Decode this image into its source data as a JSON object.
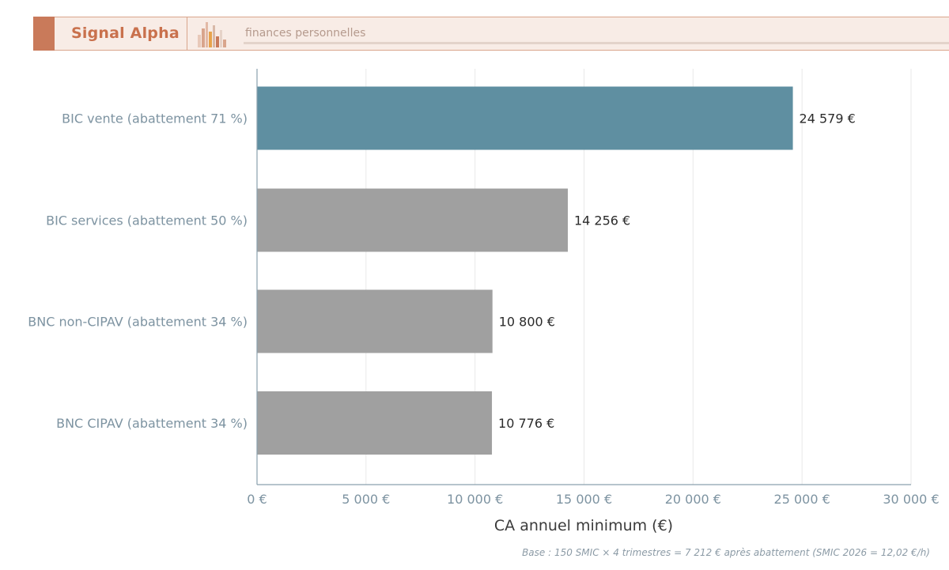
{
  "header": {
    "brand": "Signal Alpha",
    "tagline": "finances personnelles"
  },
  "colors": {
    "brand": "#c9714d",
    "highlight_bar": "#5f8fa1",
    "default_bar": "#a0a0a0",
    "axis_text": "#7d93a1"
  },
  "chart_data": {
    "type": "bar",
    "orientation": "horizontal",
    "categories": [
      "BIC vente (abattement 71 %)",
      "BIC services (abattement 50 %)",
      "BNC non-CIPAV (abattement 34 %)",
      "BNC CIPAV (abattement 34 %)"
    ],
    "values": [
      24579,
      14256,
      10800,
      10776
    ],
    "value_labels": [
      "24 579 €",
      "14 256 €",
      "10 800 €",
      "10 776 €"
    ],
    "highlight_index": 0,
    "xlabel": "CA annuel minimum (€)",
    "ylabel": "",
    "xlim": [
      0,
      30000
    ],
    "xticks": [
      0,
      5000,
      10000,
      15000,
      20000,
      25000,
      30000
    ],
    "xtick_labels": [
      "0 €",
      "5 000 €",
      "10 000 €",
      "15 000 €",
      "20 000 €",
      "25 000 €",
      "30 000 €"
    ],
    "grid": "vertical"
  },
  "footnote": "Base : 150 SMIC × 4 trimestres = 7 212 € après abattement (SMIC 2026 = 12,02 €/h)"
}
